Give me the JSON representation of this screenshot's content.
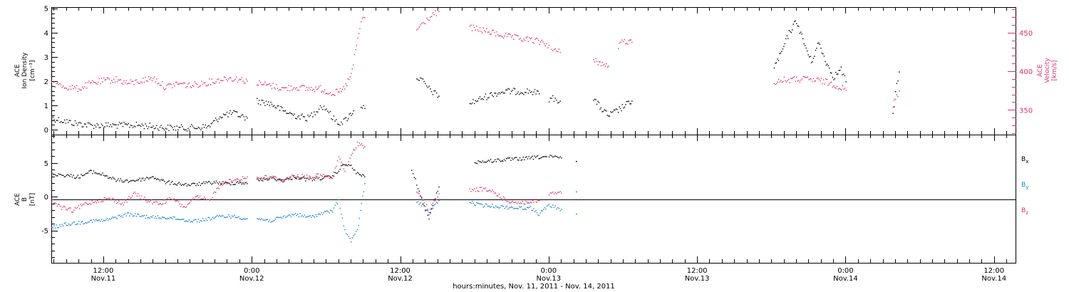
{
  "colors": {
    "black": "#000000",
    "pink": "#e0306a",
    "blue": "#1a7fd6"
  },
  "xaxis": {
    "title": "hours:minutes, Nov. 11, 2011 - Nov. 14, 2011",
    "ticks": [
      {
        "t": 12,
        "time": "12:00",
        "date": "Nov.11"
      },
      {
        "t": 24,
        "time": "0:00",
        "date": "Nov.12"
      },
      {
        "t": 36,
        "time": "12:00",
        "date": "Nov.12"
      },
      {
        "t": 48,
        "time": "0:00",
        "date": "Nov.13"
      },
      {
        "t": 60,
        "time": "12:00",
        "date": "Nov.13"
      },
      {
        "t": 72,
        "time": "0:00",
        "date": "Nov.14"
      },
      {
        "t": 84,
        "time": "12:00",
        "date": "Nov.14"
      }
    ]
  },
  "chart_data": [
    {
      "type": "scatter",
      "title": "",
      "ylabel_left": [
        "ACE",
        "Ion Density",
        "[cm⁻³]"
      ],
      "ylabel_right": [
        "ACE",
        "Velocity",
        "[km/s]"
      ],
      "xlim_hours": [
        7.8,
        85.8
      ],
      "ylim_left": [
        -0.2,
        5.05
      ],
      "ylim_right": [
        318,
        483
      ],
      "yticks_left": [
        "0",
        "1",
        "2",
        "3",
        "4",
        "5"
      ],
      "yticks_right": [
        "350",
        "400",
        "450"
      ],
      "series": [
        {
          "name": "Ion Density",
          "axis": "left",
          "color": "#000000",
          "segments": [
            {
              "x": [
                7.8,
                9.5,
                11.0,
                13.0,
                15.0,
                17.0,
                19.0,
                20.5,
                21.5,
                22.5,
                23.6
              ],
              "y": [
                0.5,
                0.3,
                0.2,
                0.2,
                0.2,
                0.1,
                0.1,
                0.15,
                0.6,
                0.7,
                0.5
              ]
            },
            {
              "x": [
                24.4,
                25.5,
                26.5,
                27.5,
                28.5,
                29.0,
                29.5,
                30.0,
                30.5,
                31.0,
                31.5,
                32.2
              ],
              "y": [
                1.2,
                1.1,
                0.8,
                0.6,
                0.5,
                0.7,
                1.0,
                0.9,
                0.5,
                0.3,
                0.4,
                0.8
              ]
            },
            {
              "x": [
                32.8,
                33.1
              ],
              "y": [
                1.0,
                0.9
              ]
            },
            {
              "x": [
                37.3,
                37.8,
                38.3,
                38.8,
                39.1
              ],
              "y": [
                2.2,
                2.0,
                1.7,
                1.5,
                1.4
              ]
            },
            {
              "x": [
                41.6,
                42.5,
                43.5,
                44.5,
                45.5,
                46.5,
                47.2
              ],
              "y": [
                1.1,
                1.3,
                1.5,
                1.6,
                1.6,
                1.6,
                1.5
              ]
            },
            {
              "x": [
                48.0,
                48.5,
                48.9
              ],
              "y": [
                1.3,
                1.3,
                1.2
              ]
            },
            {
              "x": [
                51.6,
                52.2,
                52.8,
                53.5,
                54.1,
                54.7
              ],
              "y": [
                1.3,
                0.9,
                0.6,
                0.8,
                1.0,
                1.2
              ]
            },
            {
              "x": [
                66.2,
                66.8,
                67.4,
                68.0,
                68.6,
                69.2,
                69.8,
                70.4,
                71.0,
                71.6,
                72.0
              ],
              "y": [
                2.6,
                3.2,
                4.0,
                4.5,
                3.6,
                2.8,
                3.6,
                2.8,
                2.2,
                2.5,
                2.0
              ]
            },
            {
              "x": [
                75.8,
                76.0,
                76.3
              ],
              "y": [
                0.6,
                1.5,
                2.4
              ]
            }
          ]
        },
        {
          "name": "Velocity",
          "axis": "right",
          "color": "#e0306a",
          "segments": [
            {
              "x": [
                7.8,
                9.0,
                10.0,
                11.0,
                12.0,
                13.0,
                14.0,
                15.0,
                16.0,
                17.0,
                18.0,
                19.0,
                20.0,
                21.0,
                22.0,
                23.0,
                23.6
              ],
              "y": [
                385,
                380,
                378,
                385,
                388,
                390,
                385,
                388,
                392,
                380,
                385,
                382,
                385,
                388,
                392,
                390,
                388
              ]
            },
            {
              "x": [
                24.4,
                25.5,
                26.5,
                27.5,
                28.5,
                29.5,
                30.5,
                31.3,
                32.0,
                32.8,
                33.1
              ],
              "y": [
                385,
                382,
                378,
                380,
                378,
                378,
                372,
                375,
                395,
                465,
                470
              ]
            },
            {
              "x": [
                37.3,
                37.8,
                38.3,
                38.8,
                39.1
              ],
              "y": [
                455,
                462,
                470,
                475,
                478
              ]
            },
            {
              "x": [
                41.6,
                42.5,
                43.5,
                44.5,
                45.5,
                46.5,
                47.5,
                48.0
              ],
              "y": [
                457,
                454,
                450,
                446,
                443,
                441,
                438,
                434
              ]
            },
            {
              "x": [
                48.2,
                48.6,
                48.9
              ],
              "y": [
                428,
                426,
                425
              ]
            },
            {
              "x": [
                51.6,
                52.2,
                52.8
              ],
              "y": [
                417,
                410,
                407
              ]
            },
            {
              "x": [
                53.6,
                54.1,
                54.7
              ],
              "y": [
                433,
                440,
                438
              ]
            },
            {
              "x": [
                66.2,
                67.0,
                68.0,
                69.0,
                70.0,
                71.0,
                72.0
              ],
              "y": [
                387,
                389,
                390,
                390,
                388,
                384,
                376
              ]
            },
            {
              "x": [
                75.8,
                76.0,
                76.3
              ],
              "y": [
                355,
                365,
                375
              ]
            }
          ]
        }
      ]
    },
    {
      "type": "scatter",
      "title": "",
      "ylabel": [
        "ACE",
        "B",
        "[nT]"
      ],
      "xlim_hours": [
        7.8,
        85.8
      ],
      "ylim": [
        -9.8,
        9.2
      ],
      "yticks": [
        "-5",
        "0",
        "5"
      ],
      "legend": [
        {
          "name": "Bx",
          "main": "B",
          "sub": "x",
          "color": "#000000"
        },
        {
          "name": "By",
          "main": "B",
          "sub": "y",
          "color": "#1a7fd6"
        },
        {
          "name": "Bz",
          "main": "B",
          "sub": "z",
          "color": "#e0306a"
        }
      ],
      "series": [
        {
          "name": "Bx",
          "color": "#000000",
          "segments": [
            {
              "x": [
                7.8,
                9.0,
                10.0,
                11.0,
                12.0,
                13.0,
                14.0,
                15.0,
                16.0,
                17.0,
                18.0,
                19.0,
                20.0,
                21.0,
                22.0,
                23.0,
                23.6
              ],
              "y": [
                3.5,
                3.2,
                3.0,
                3.8,
                3.3,
                2.5,
                2.4,
                2.6,
                3.0,
                2.2,
                2.0,
                1.8,
                2.0,
                2.2,
                2.0,
                2.2,
                2.0
              ]
            },
            {
              "x": [
                24.4,
                25.5,
                26.5,
                27.5,
                28.5,
                29.5,
                30.5,
                31.0,
                31.5,
                32.0,
                32.5,
                33.1
              ],
              "y": [
                2.5,
                2.8,
                2.5,
                3.0,
                2.6,
                2.8,
                3.0,
                4.0,
                5.0,
                4.5,
                3.5,
                3.0
              ]
            },
            {
              "x": [
                36.9,
                37.3,
                37.8,
                38.3,
                38.8,
                39.1
              ],
              "y": [
                4.0,
                2.0,
                -1.0,
                -3.0,
                0.0,
                1.5
              ]
            },
            {
              "x": [
                42.0,
                43.0,
                44.0,
                45.0,
                46.0,
                47.0,
                47.8
              ],
              "y": [
                5.2,
                5.3,
                5.5,
                5.6,
                5.7,
                5.9,
                6.0
              ]
            },
            {
              "x": [
                48.0,
                48.5,
                49.0
              ],
              "y": [
                6.0,
                5.9,
                5.8
              ]
            },
            {
              "x": [
                50.2
              ],
              "y": [
                5.3
              ]
            }
          ]
        },
        {
          "name": "By",
          "color": "#1a7fd6",
          "segments": [
            {
              "x": [
                7.8,
                9.0,
                10.0,
                11.0,
                12.0,
                13.0,
                14.0,
                15.0,
                16.0,
                17.0,
                18.0,
                19.0,
                20.0,
                21.0,
                22.0,
                23.0,
                23.6
              ],
              "y": [
                -4.5,
                -4.0,
                -3.8,
                -3.5,
                -3.5,
                -3.0,
                -2.5,
                -2.8,
                -3.0,
                -3.0,
                -3.2,
                -3.5,
                -3.4,
                -3.0,
                -2.8,
                -3.0,
                -3.2
              ]
            },
            {
              "x": [
                24.4,
                25.5,
                26.5,
                27.5,
                28.5,
                29.5,
                30.5,
                31.0,
                31.5,
                32.0,
                32.5,
                33.1
              ],
              "y": [
                -3.2,
                -3.5,
                -3.0,
                -2.5,
                -3.0,
                -2.5,
                -2.0,
                -0.5,
                -5.0,
                -6.5,
                -5.0,
                2.0
              ]
            },
            {
              "x": [
                37.3,
                37.8,
                38.3,
                38.8,
                39.1
              ],
              "y": [
                -0.8,
                -1.2,
                -2.5,
                -1.0,
                -0.5
              ]
            },
            {
              "x": [
                41.6,
                42.5,
                43.5,
                44.5,
                45.5,
                46.5,
                47.2,
                48.0,
                48.5,
                49.0
              ],
              "y": [
                -0.8,
                -1.2,
                -1.3,
                -1.5,
                -1.6,
                -1.6,
                -2.5,
                -1.2,
                -1.5,
                -1.8
              ]
            },
            {
              "x": [
                50.2
              ],
              "y": [
                -2.5
              ]
            }
          ]
        },
        {
          "name": "Bz",
          "color": "#e0306a",
          "segments": [
            {
              "x": [
                7.8,
                8.5,
                9.5,
                10.5,
                11.5,
                12.5,
                13.5,
                14.5,
                15.5,
                16.5,
                17.5,
                18.5,
                19.5,
                20.5,
                21.5,
                22.5,
                23.6
              ],
              "y": [
                -0.5,
                -1.5,
                -2.0,
                -1.0,
                -0.5,
                -0.2,
                -1.0,
                0.5,
                -0.5,
                -1.0,
                -0.2,
                -1.5,
                0.0,
                -0.5,
                2.0,
                2.5,
                3.0
              ]
            },
            {
              "x": [
                24.4,
                25.5,
                26.5,
                27.5,
                28.5,
                29.5,
                30.5,
                31.0,
                31.5,
                32.0,
                32.5,
                33.1
              ],
              "y": [
                2.8,
                3.0,
                2.5,
                3.2,
                3.0,
                3.2,
                2.8,
                6.0,
                4.0,
                6.0,
                8.0,
                7.5
              ]
            },
            {
              "x": [
                37.3,
                37.8,
                38.3,
                38.8,
                39.1
              ],
              "y": [
                1.0,
                -0.5,
                -2.0,
                -0.5,
                0.5
              ]
            },
            {
              "x": [
                41.6,
                42.5,
                43.5,
                44.5,
                45.5,
                46.5,
                47.2
              ],
              "y": [
                1.0,
                1.2,
                0.8,
                -0.5,
                -0.8,
                -0.8,
                -0.5
              ]
            },
            {
              "x": [
                48.0,
                48.5,
                49.0
              ],
              "y": [
                0.5,
                0.5,
                0.6
              ]
            },
            {
              "x": [
                50.2
              ],
              "y": [
                0.8
              ]
            }
          ]
        }
      ]
    }
  ]
}
